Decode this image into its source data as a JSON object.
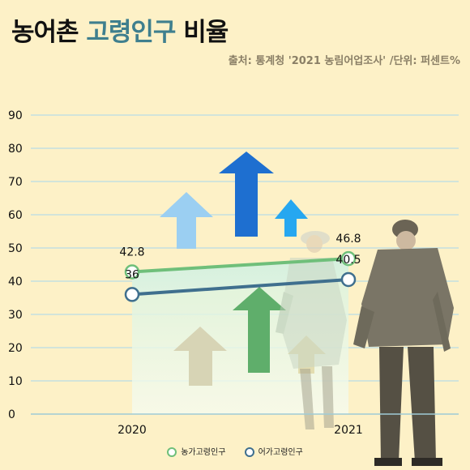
{
  "title_main": "농어촌",
  "title_accent": "고령인구",
  "title_tail": "비율",
  "source": "출처: 통계청 '2021 농림어업조사' /단위: 퍼센트%",
  "colors": {
    "background": "#FDF1C7",
    "grid": "#B9DDE6",
    "farm_line": "#6FBF7A",
    "fish_line": "#3F6F8E",
    "title_accent": "#3F7F8E"
  },
  "chart_data": {
    "type": "line",
    "title": "농어촌 고령인구 비율",
    "x": [
      "2020",
      "2021"
    ],
    "ylim": [
      0,
      90
    ],
    "yticks": [
      0,
      10,
      20,
      30,
      40,
      50,
      60,
      70,
      80,
      90
    ],
    "grid": true,
    "legend_position": "bottom",
    "series": [
      {
        "name": "농가고령인구",
        "values": [
          42.8,
          46.8
        ],
        "labels": [
          "42.8",
          "46.8"
        ]
      },
      {
        "name": "어가고령인구",
        "values": [
          36,
          40.5
        ],
        "labels": [
          "36",
          "40.5"
        ]
      }
    ]
  }
}
